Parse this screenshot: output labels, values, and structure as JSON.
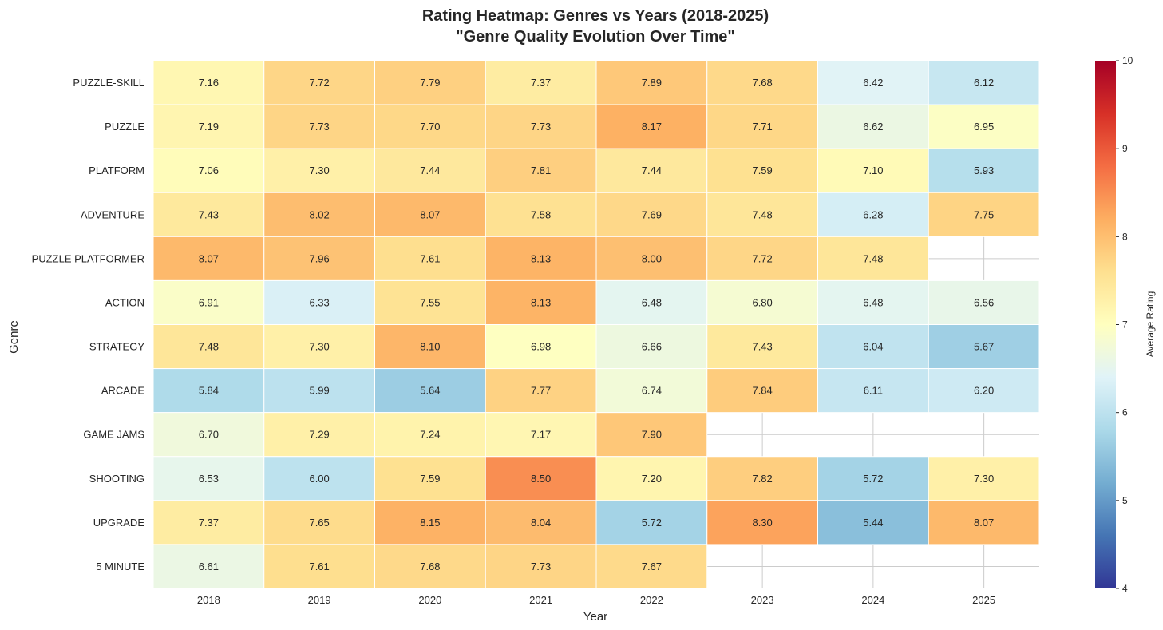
{
  "chart_data": {
    "type": "heatmap",
    "title_line1": "Rating Heatmap: Genres vs Years (2018-2025)",
    "title_line2": "\"Genre Quality Evolution Over Time\"",
    "xlabel": "Year",
    "ylabel": "Genre",
    "colorbar_label": "Average Rating",
    "colormap": "RdYlBu_r",
    "vmin": 4,
    "vmax": 10,
    "colorbar_ticks": [
      4,
      5,
      6,
      7,
      8,
      9,
      10
    ],
    "x": [
      "2018",
      "2019",
      "2020",
      "2021",
      "2022",
      "2023",
      "2024",
      "2025"
    ],
    "y": [
      "PUZZLE-SKILL",
      "PUZZLE",
      "PLATFORM",
      "ADVENTURE",
      "PUZZLE PLATFORMER",
      "ACTION",
      "STRATEGY",
      "ARCADE",
      "GAME JAMS",
      "SHOOTING",
      "UPGRADE",
      "5 MINUTE"
    ],
    "values": [
      [
        7.16,
        7.72,
        7.79,
        7.37,
        7.89,
        7.68,
        6.42,
        6.12
      ],
      [
        7.19,
        7.73,
        7.7,
        7.73,
        8.17,
        7.71,
        6.62,
        6.95
      ],
      [
        7.06,
        7.3,
        7.44,
        7.81,
        7.44,
        7.59,
        7.1,
        5.93
      ],
      [
        7.43,
        8.02,
        8.07,
        7.58,
        7.69,
        7.48,
        6.28,
        7.75
      ],
      [
        8.07,
        7.96,
        7.61,
        8.13,
        8.0,
        7.72,
        7.48,
        null
      ],
      [
        6.91,
        6.33,
        7.55,
        8.13,
        6.48,
        6.8,
        6.48,
        6.56
      ],
      [
        7.48,
        7.3,
        8.1,
        6.98,
        6.66,
        7.43,
        6.04,
        5.67
      ],
      [
        5.84,
        5.99,
        5.64,
        7.77,
        6.74,
        7.84,
        6.11,
        6.2
      ],
      [
        6.7,
        7.29,
        7.24,
        7.17,
        7.9,
        null,
        null,
        null
      ],
      [
        6.53,
        6.0,
        7.59,
        8.5,
        7.2,
        7.82,
        5.72,
        7.3
      ],
      [
        7.37,
        7.65,
        8.15,
        8.04,
        5.72,
        8.3,
        5.44,
        8.07
      ],
      [
        6.61,
        7.61,
        7.68,
        7.73,
        7.67,
        null,
        null,
        null
      ]
    ],
    "grid": true,
    "annotations": true,
    "legend": "colorbar-right"
  }
}
